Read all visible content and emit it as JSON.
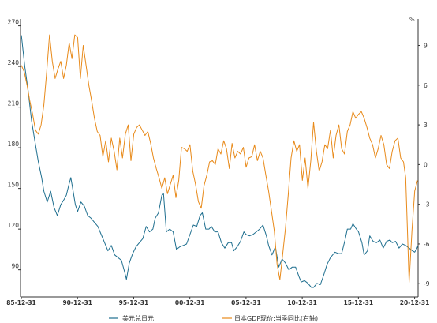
{
  "chart_data": {
    "type": "line",
    "title": "",
    "xlabel": "",
    "ylabel_left": "",
    "ylabel_right": "%",
    "x_range": [
      1985.92,
      2021.3
    ],
    "x_ticks": [
      {
        "x": 1985.99,
        "label": "85-12-31"
      },
      {
        "x": 1990.99,
        "label": "90-12-31"
      },
      {
        "x": 1995.99,
        "label": "95-12-31"
      },
      {
        "x": 2000.99,
        "label": "00-12-31"
      },
      {
        "x": 2005.99,
        "label": "05-12-31"
      },
      {
        "x": 2010.99,
        "label": "10-12-31"
      },
      {
        "x": 2015.99,
        "label": "15-12-31"
      },
      {
        "x": 2020.99,
        "label": "20-12-31"
      }
    ],
    "y_left": {
      "min": 70,
      "max": 275,
      "ticks": [
        90,
        120,
        150,
        180,
        210,
        240,
        270
      ]
    },
    "y_right": {
      "min": -10,
      "max": 11,
      "ticks": [
        -9,
        -6,
        -3,
        0,
        3,
        6,
        9
      ]
    },
    "legend_position": "bottom",
    "grid": false,
    "series": [
      {
        "name": "美元兑日元",
        "axis": "left",
        "color": "#1f6f8f",
        "points": [
          [
            1986.0,
            263
          ],
          [
            1986.3,
            240
          ],
          [
            1986.6,
            222
          ],
          [
            1986.9,
            200
          ],
          [
            1987.2,
            185
          ],
          [
            1987.5,
            170
          ],
          [
            1987.8,
            158
          ],
          [
            1988.0,
            148
          ],
          [
            1988.3,
            140
          ],
          [
            1988.6,
            148
          ],
          [
            1988.9,
            136
          ],
          [
            1989.2,
            130
          ],
          [
            1989.5,
            138
          ],
          [
            1989.8,
            142
          ],
          [
            1990.0,
            145
          ],
          [
            1990.2,
            152
          ],
          [
            1990.4,
            158
          ],
          [
            1990.6,
            148
          ],
          [
            1990.8,
            138
          ],
          [
            1991.0,
            133
          ],
          [
            1991.3,
            140
          ],
          [
            1991.6,
            137
          ],
          [
            1991.9,
            130
          ],
          [
            1992.2,
            128
          ],
          [
            1992.5,
            125
          ],
          [
            1992.8,
            122
          ],
          [
            1993.1,
            116
          ],
          [
            1993.4,
            110
          ],
          [
            1993.7,
            104
          ],
          [
            1994.0,
            108
          ],
          [
            1994.3,
            101
          ],
          [
            1994.6,
            99
          ],
          [
            1994.9,
            97
          ],
          [
            1995.2,
            88
          ],
          [
            1995.35,
            83
          ],
          [
            1995.6,
            95
          ],
          [
            1995.9,
            102
          ],
          [
            1996.2,
            107
          ],
          [
            1996.5,
            110
          ],
          [
            1996.8,
            113
          ],
          [
            1997.1,
            122
          ],
          [
            1997.4,
            118
          ],
          [
            1997.7,
            120
          ],
          [
            1997.9,
            128
          ],
          [
            1998.2,
            132
          ],
          [
            1998.5,
            145
          ],
          [
            1998.65,
            146
          ],
          [
            1998.9,
            118
          ],
          [
            1999.2,
            120
          ],
          [
            1999.5,
            118
          ],
          [
            1999.8,
            105
          ],
          [
            2000.1,
            107
          ],
          [
            2000.4,
            108
          ],
          [
            2000.7,
            109
          ],
          [
            2001.0,
            116
          ],
          [
            2001.3,
            123
          ],
          [
            2001.6,
            122
          ],
          [
            2001.9,
            130
          ],
          [
            2002.1,
            132
          ],
          [
            2002.4,
            120
          ],
          [
            2002.7,
            120
          ],
          [
            2002.9,
            122
          ],
          [
            2003.2,
            118
          ],
          [
            2003.5,
            118
          ],
          [
            2003.8,
            110
          ],
          [
            2004.1,
            106
          ],
          [
            2004.4,
            110
          ],
          [
            2004.7,
            110
          ],
          [
            2004.9,
            104
          ],
          [
            2005.2,
            107
          ],
          [
            2005.5,
            111
          ],
          [
            2005.8,
            118
          ],
          [
            2006.0,
            116
          ],
          [
            2006.3,
            115
          ],
          [
            2006.6,
            116
          ],
          [
            2006.9,
            118
          ],
          [
            2007.2,
            120
          ],
          [
            2007.5,
            123
          ],
          [
            2007.8,
            115
          ],
          [
            2008.0,
            108
          ],
          [
            2008.3,
            101
          ],
          [
            2008.6,
            107
          ],
          [
            2008.9,
            92
          ],
          [
            2009.2,
            98
          ],
          [
            2009.5,
            95
          ],
          [
            2009.8,
            90
          ],
          [
            2010.1,
            92
          ],
          [
            2010.4,
            92
          ],
          [
            2010.7,
            85
          ],
          [
            2010.9,
            81
          ],
          [
            2011.2,
            82
          ],
          [
            2011.5,
            80
          ],
          [
            2011.8,
            77
          ],
          [
            2012.0,
            77
          ],
          [
            2012.3,
            80
          ],
          [
            2012.6,
            79
          ],
          [
            2012.9,
            86
          ],
          [
            2013.2,
            94
          ],
          [
            2013.5,
            99
          ],
          [
            2013.9,
            103
          ],
          [
            2014.2,
            102
          ],
          [
            2014.5,
            102
          ],
          [
            2014.8,
            112
          ],
          [
            2015.0,
            120
          ],
          [
            2015.3,
            120
          ],
          [
            2015.5,
            124
          ],
          [
            2015.8,
            120
          ],
          [
            2016.0,
            118
          ],
          [
            2016.3,
            110
          ],
          [
            2016.5,
            101
          ],
          [
            2016.8,
            104
          ],
          [
            2017.0,
            115
          ],
          [
            2017.3,
            111
          ],
          [
            2017.6,
            110
          ],
          [
            2017.9,
            112
          ],
          [
            2018.2,
            106
          ],
          [
            2018.5,
            111
          ],
          [
            2018.8,
            112
          ],
          [
            2019.0,
            110
          ],
          [
            2019.3,
            111
          ],
          [
            2019.6,
            106
          ],
          [
            2019.9,
            109
          ],
          [
            2020.2,
            108
          ],
          [
            2020.5,
            106
          ],
          [
            2020.8,
            104
          ],
          [
            2021.0,
            103
          ],
          [
            2021.2,
            106
          ],
          [
            2021.3,
            108
          ]
        ]
      },
      {
        "name": "日本GDP现价:当季同比(右轴)",
        "axis": "right",
        "color": "#e88a1a",
        "points": [
          [
            1986.0,
            7.5
          ],
          [
            1986.25,
            7.0
          ],
          [
            1986.5,
            6.0
          ],
          [
            1986.75,
            4.8
          ],
          [
            1987.0,
            3.8
          ],
          [
            1987.25,
            2.6
          ],
          [
            1987.5,
            2.3
          ],
          [
            1987.75,
            3.0
          ],
          [
            1988.0,
            4.5
          ],
          [
            1988.25,
            7.0
          ],
          [
            1988.5,
            9.8
          ],
          [
            1988.75,
            7.8
          ],
          [
            1989.0,
            6.5
          ],
          [
            1989.25,
            7.2
          ],
          [
            1989.5,
            7.8
          ],
          [
            1989.75,
            6.5
          ],
          [
            1990.0,
            7.5
          ],
          [
            1990.25,
            9.2
          ],
          [
            1990.5,
            8.0
          ],
          [
            1990.75,
            9.8
          ],
          [
            1991.0,
            9.6
          ],
          [
            1991.25,
            6.5
          ],
          [
            1991.5,
            9.0
          ],
          [
            1991.75,
            7.5
          ],
          [
            1992.0,
            6.0
          ],
          [
            1992.25,
            4.8
          ],
          [
            1992.5,
            3.5
          ],
          [
            1992.75,
            2.5
          ],
          [
            1993.0,
            2.2
          ],
          [
            1993.25,
            0.6
          ],
          [
            1993.5,
            1.8
          ],
          [
            1993.75,
            0.2
          ],
          [
            1994.0,
            2.0
          ],
          [
            1994.25,
            1.0
          ],
          [
            1994.5,
            -0.4
          ],
          [
            1994.75,
            2.0
          ],
          [
            1995.0,
            0.5
          ],
          [
            1995.25,
            2.3
          ],
          [
            1995.5,
            3.0
          ],
          [
            1995.75,
            0.3
          ],
          [
            1996.0,
            2.3
          ],
          [
            1996.25,
            2.8
          ],
          [
            1996.5,
            3.0
          ],
          [
            1996.75,
            2.6
          ],
          [
            1997.0,
            2.2
          ],
          [
            1997.25,
            2.5
          ],
          [
            1997.5,
            1.6
          ],
          [
            1997.75,
            0.5
          ],
          [
            1998.0,
            -0.3
          ],
          [
            1998.25,
            -1.0
          ],
          [
            1998.5,
            -1.8
          ],
          [
            1998.75,
            -1.0
          ],
          [
            1999.0,
            -2.2
          ],
          [
            1999.25,
            -1.5
          ],
          [
            1999.5,
            -0.8
          ],
          [
            1999.75,
            -2.5
          ],
          [
            2000.0,
            -1.2
          ],
          [
            2000.25,
            1.3
          ],
          [
            2000.5,
            1.2
          ],
          [
            2000.75,
            1.0
          ],
          [
            2001.0,
            1.5
          ],
          [
            2001.25,
            -0.5
          ],
          [
            2001.5,
            -1.5
          ],
          [
            2001.75,
            -2.8
          ],
          [
            2002.0,
            -3.3
          ],
          [
            2002.25,
            -1.6
          ],
          [
            2002.5,
            -0.8
          ],
          [
            2002.75,
            0.2
          ],
          [
            2003.0,
            0.3
          ],
          [
            2003.25,
            0.0
          ],
          [
            2003.5,
            1.2
          ],
          [
            2003.75,
            0.8
          ],
          [
            2004.0,
            1.8
          ],
          [
            2004.25,
            1.2
          ],
          [
            2004.5,
            -0.3
          ],
          [
            2004.75,
            1.6
          ],
          [
            2005.0,
            0.5
          ],
          [
            2005.25,
            1.0
          ],
          [
            2005.5,
            0.8
          ],
          [
            2005.75,
            1.3
          ],
          [
            2006.0,
            -0.2
          ],
          [
            2006.25,
            0.5
          ],
          [
            2006.5,
            0.6
          ],
          [
            2006.75,
            1.5
          ],
          [
            2007.0,
            0.3
          ],
          [
            2007.25,
            1.0
          ],
          [
            2007.5,
            0.5
          ],
          [
            2007.75,
            -0.8
          ],
          [
            2008.0,
            -2.0
          ],
          [
            2008.25,
            -3.5
          ],
          [
            2008.5,
            -5.0
          ],
          [
            2008.75,
            -7.5
          ],
          [
            2009.0,
            -8.7
          ],
          [
            2009.25,
            -6.8
          ],
          [
            2009.5,
            -4.8
          ],
          [
            2009.75,
            -2.2
          ],
          [
            2010.0,
            0.5
          ],
          [
            2010.25,
            1.8
          ],
          [
            2010.5,
            1.0
          ],
          [
            2010.75,
            1.5
          ],
          [
            2011.0,
            -1.2
          ],
          [
            2011.25,
            0.5
          ],
          [
            2011.5,
            -1.8
          ],
          [
            2011.75,
            0.3
          ],
          [
            2012.0,
            3.2
          ],
          [
            2012.25,
            1.0
          ],
          [
            2012.5,
            -0.5
          ],
          [
            2012.75,
            0.2
          ],
          [
            2013.0,
            1.5
          ],
          [
            2013.25,
            1.2
          ],
          [
            2013.5,
            2.6
          ],
          [
            2013.75,
            0.5
          ],
          [
            2014.0,
            2.2
          ],
          [
            2014.25,
            3.0
          ],
          [
            2014.5,
            1.2
          ],
          [
            2014.75,
            0.8
          ],
          [
            2015.0,
            2.5
          ],
          [
            2015.25,
            3.0
          ],
          [
            2015.5,
            4.0
          ],
          [
            2015.75,
            3.5
          ],
          [
            2016.0,
            3.8
          ],
          [
            2016.25,
            4.0
          ],
          [
            2016.5,
            3.5
          ],
          [
            2016.75,
            2.8
          ],
          [
            2017.0,
            2.0
          ],
          [
            2017.25,
            1.5
          ],
          [
            2017.5,
            0.5
          ],
          [
            2017.75,
            1.2
          ],
          [
            2018.0,
            2.2
          ],
          [
            2018.25,
            1.5
          ],
          [
            2018.5,
            0.0
          ],
          [
            2018.75,
            -0.3
          ],
          [
            2019.0,
            1.0
          ],
          [
            2019.25,
            1.8
          ],
          [
            2019.5,
            2.0
          ],
          [
            2019.75,
            0.5
          ],
          [
            2020.0,
            0.2
          ],
          [
            2020.2,
            -1.0
          ],
          [
            2020.35,
            -5.0
          ],
          [
            2020.5,
            -8.9
          ],
          [
            2020.75,
            -5.0
          ],
          [
            2021.0,
            -2.0
          ],
          [
            2021.25,
            -1.2
          ]
        ]
      }
    ]
  },
  "legend": [
    {
      "label": "美元兑日元",
      "color": "#1f6f8f"
    },
    {
      "label": "日本GDP现价:当季同比(右轴)",
      "color": "#e88a1a"
    }
  ]
}
